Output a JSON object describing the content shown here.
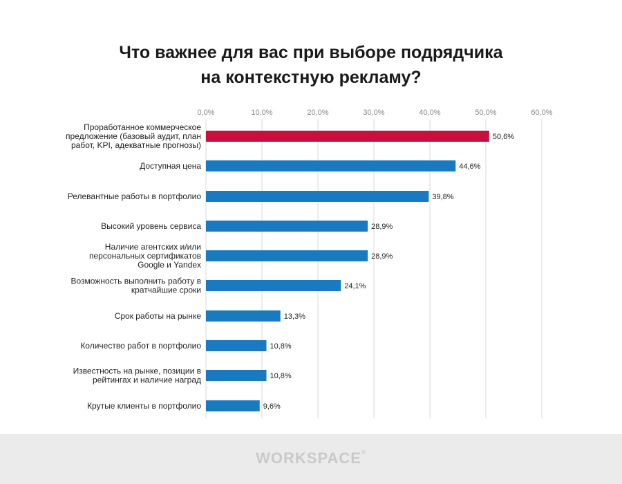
{
  "chart_data": {
    "type": "bar",
    "orientation": "horizontal",
    "title_lines": [
      "Что важнее для вас при выборе подрядчика",
      "на контекстную рекламу?"
    ],
    "categories": [
      [
        "Проработанное коммерческое",
        "предложение (базовый аудит, план",
        "работ, KPI, адекватные прогнозы)"
      ],
      [
        "Доступная цена"
      ],
      [
        "Релевантные работы в портфолио"
      ],
      [
        "Высокий уровень сервиса"
      ],
      [
        "Наличие агентских и/или",
        "персональных сертификатов",
        "Google и Yandex"
      ],
      [
        "Возможность выполнить работу в",
        "кратчайшие сроки"
      ],
      [
        "Срок работы на рынке"
      ],
      [
        "Количество работ в портфолио"
      ],
      [
        "Известность на рынке, позиции в",
        "рейтингах и наличие наград"
      ],
      [
        "Крутые клиенты в портфолио"
      ]
    ],
    "values": [
      50.6,
      44.6,
      39.8,
      28.9,
      28.9,
      24.1,
      13.3,
      10.8,
      10.8,
      9.6
    ],
    "value_labels": [
      "50,6%",
      "44,6%",
      "39,8%",
      "28,9%",
      "28,9%",
      "24,1%",
      "13,3%",
      "10,8%",
      "10,8%",
      "9,6%"
    ],
    "xlim": [
      0,
      60
    ],
    "ticks": [
      0,
      10,
      20,
      30,
      40,
      50,
      60
    ],
    "tick_labels": [
      "0,0%",
      "10,0%",
      "20,0%",
      "30,0%",
      "40,0%",
      "50,0%",
      "60,0%"
    ],
    "grid": true,
    "colors": {
      "highlight": "#c8103e",
      "default": "#1a7ac0",
      "grid": "#d9d9d9"
    }
  },
  "footer": {
    "logo": "WORKSPACE",
    "logo_mark": "®"
  }
}
